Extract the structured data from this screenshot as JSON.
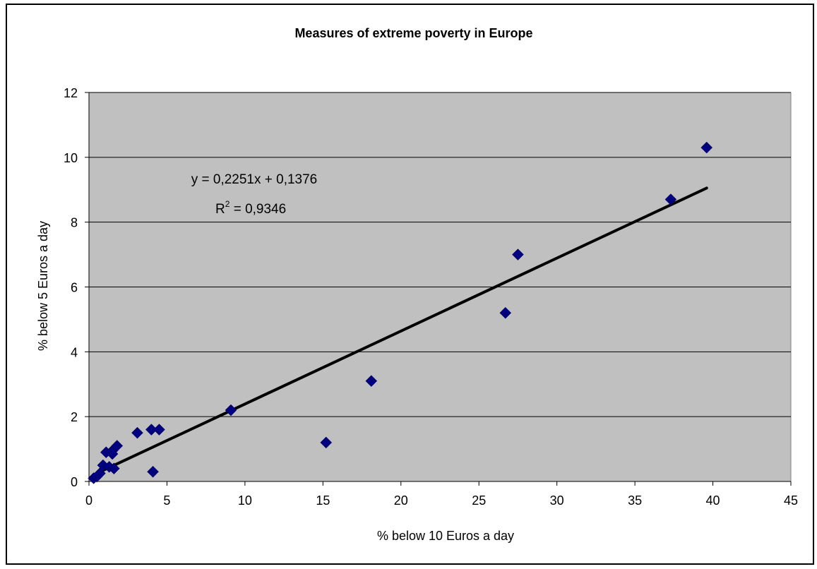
{
  "chart_data": {
    "type": "scatter",
    "title": "Measures of extreme poverty in Europe",
    "xlabel": "% below 10 Euros a day",
    "ylabel": "% below 5 Euros a day",
    "xlim": [
      0,
      45
    ],
    "ylim": [
      0,
      12
    ],
    "x_ticks": [
      "0",
      "5",
      "10",
      "15",
      "20",
      "25",
      "30",
      "35",
      "40",
      "45"
    ],
    "y_ticks": [
      "0",
      "2",
      "4",
      "6",
      "8",
      "10",
      "12"
    ],
    "grid": "horizontal",
    "plot_background": "#c0c0c0",
    "marker_color": "#000080",
    "trendline_color": "#000000",
    "trendline": {
      "slope": 0.2251,
      "intercept": 0.1376,
      "x_range": [
        0.3,
        39.6
      ]
    },
    "equation_text": "y = 0,2251x + 0,1376",
    "r2_label": "R",
    "r2_exponent": "2",
    "r2_value": " = 0,9346",
    "points": [
      {
        "x": 0.3,
        "y": 0.1
      },
      {
        "x": 0.5,
        "y": 0.15
      },
      {
        "x": 0.7,
        "y": 0.25
      },
      {
        "x": 0.9,
        "y": 0.5
      },
      {
        "x": 1.1,
        "y": 0.9
      },
      {
        "x": 1.3,
        "y": 0.45
      },
      {
        "x": 1.5,
        "y": 0.85
      },
      {
        "x": 1.5,
        "y": 0.95
      },
      {
        "x": 1.6,
        "y": 0.4
      },
      {
        "x": 1.8,
        "y": 1.1
      },
      {
        "x": 3.1,
        "y": 1.5
      },
      {
        "x": 4.0,
        "y": 1.6
      },
      {
        "x": 4.1,
        "y": 0.3
      },
      {
        "x": 4.5,
        "y": 1.6
      },
      {
        "x": 9.1,
        "y": 2.2
      },
      {
        "x": 15.2,
        "y": 1.2
      },
      {
        "x": 18.1,
        "y": 3.1
      },
      {
        "x": 26.7,
        "y": 5.2
      },
      {
        "x": 27.5,
        "y": 7.0
      },
      {
        "x": 37.3,
        "y": 8.7
      },
      {
        "x": 39.6,
        "y": 10.3
      }
    ]
  }
}
